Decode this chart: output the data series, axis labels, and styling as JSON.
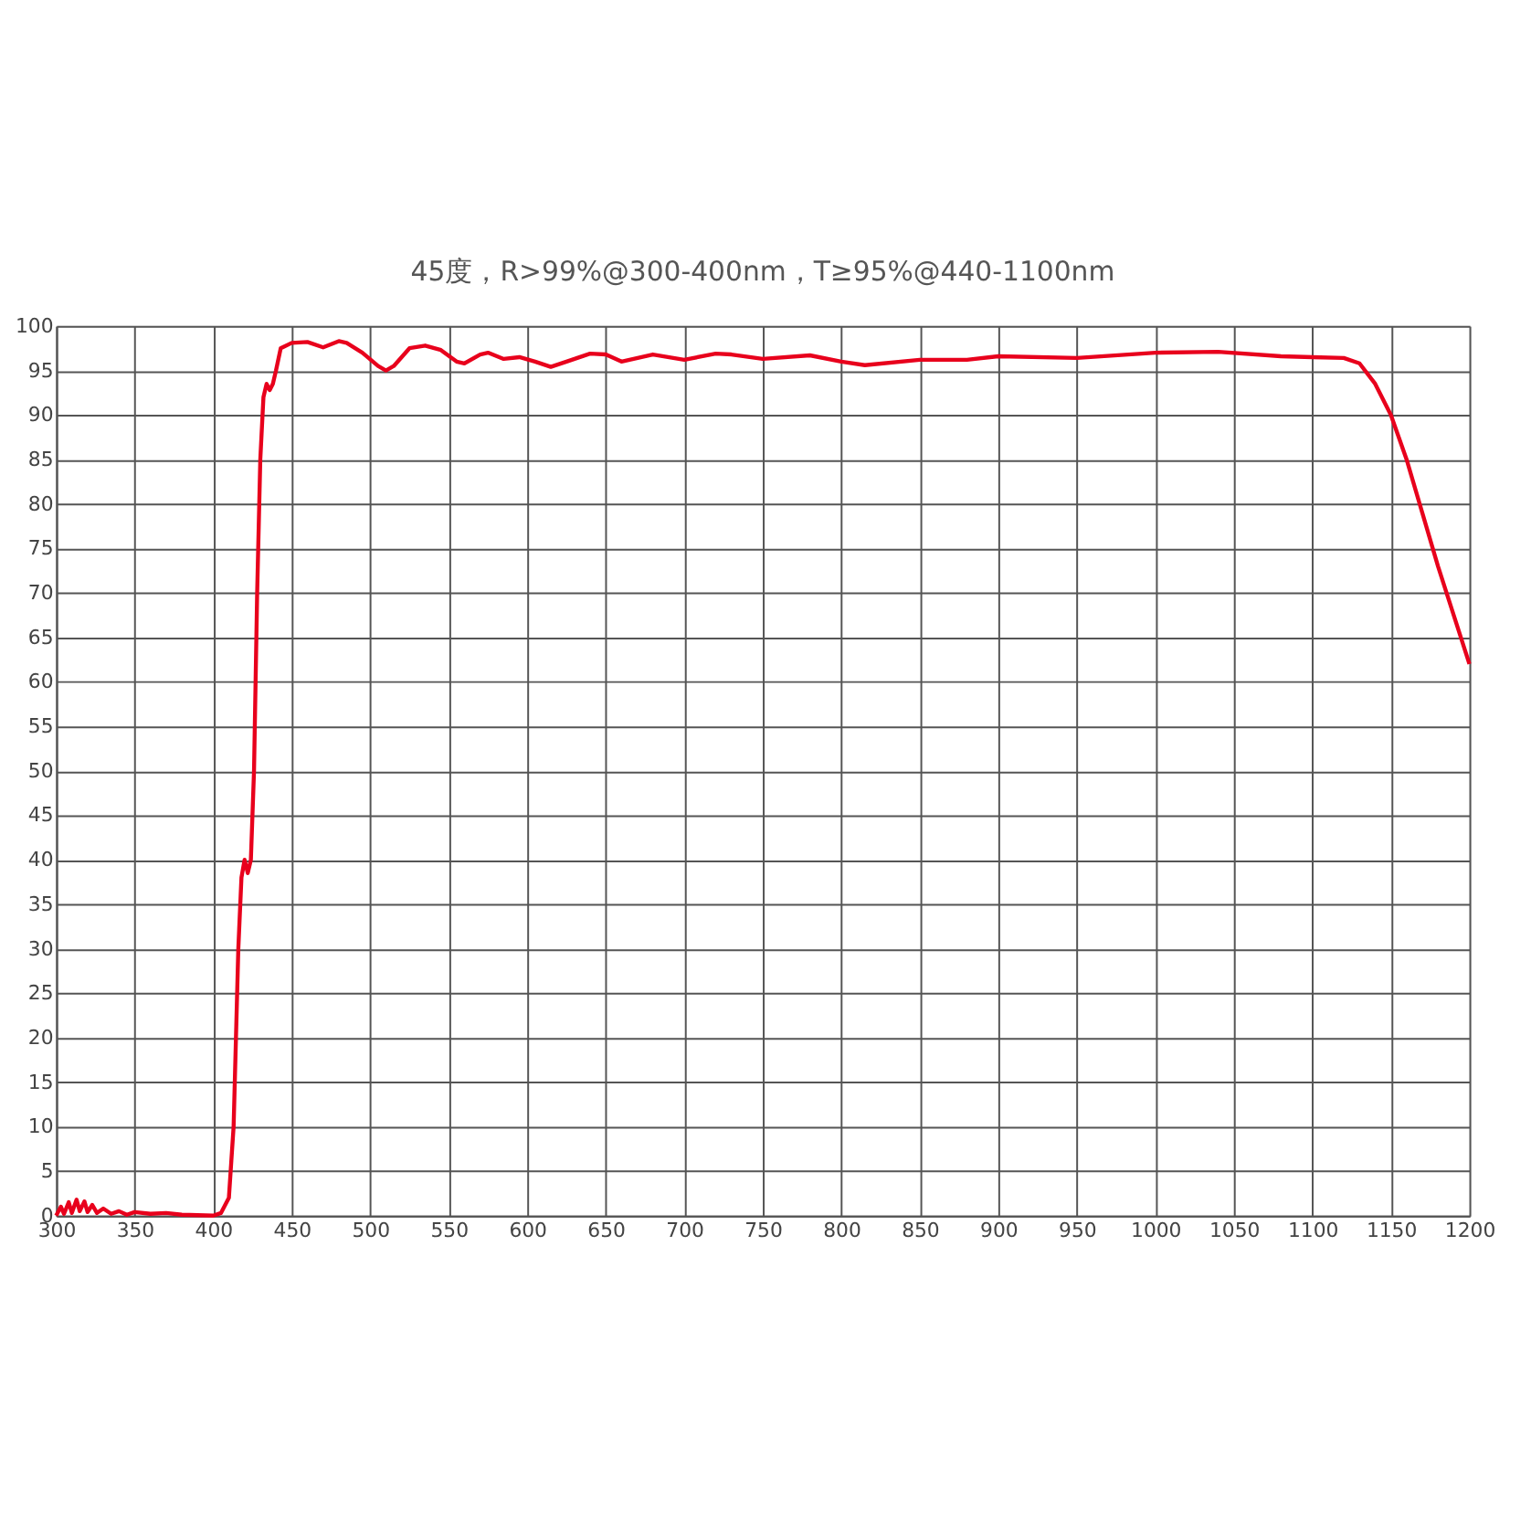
{
  "chart_data": {
    "type": "line",
    "title": "45度，R>99%@300-400nm，T≥95%@440-1100nm",
    "x": [
      300,
      303,
      305,
      308,
      310,
      313,
      315,
      318,
      320,
      323,
      326,
      330,
      335,
      340,
      345,
      350,
      360,
      370,
      380,
      400,
      405,
      410,
      413,
      416,
      418,
      420,
      422,
      424,
      426,
      428,
      430,
      432,
      434,
      436,
      438,
      440,
      443,
      450,
      460,
      470,
      480,
      485,
      495,
      505,
      510,
      515,
      525,
      535,
      545,
      555,
      560,
      570,
      575,
      585,
      595,
      605,
      615,
      625,
      640,
      650,
      660,
      680,
      700,
      720,
      730,
      750,
      780,
      800,
      815,
      850,
      880,
      900,
      950,
      1000,
      1040,
      1080,
      1100,
      1120,
      1130,
      1140,
      1150,
      1160,
      1170,
      1180,
      1190,
      1200
    ],
    "series": [
      {
        "color": "#e8001c",
        "values": [
          0,
          1,
          0.2,
          1.5,
          0.3,
          1.8,
          0.5,
          1.6,
          0.4,
          1.2,
          0.3,
          0.8,
          0.2,
          0.5,
          0.1,
          0.4,
          0.2,
          0.3,
          0.1,
          0,
          0.3,
          2,
          10,
          30,
          38,
          40,
          38.5,
          40,
          50,
          70,
          85,
          92,
          93.5,
          92.8,
          93.5,
          95,
          97.5,
          98.1,
          98.2,
          97.6,
          98.3,
          98.1,
          97,
          95.5,
          95,
          95.5,
          97.5,
          97.8,
          97.3,
          96,
          95.8,
          96.8,
          97,
          96.3,
          96.5,
          96,
          95.4,
          96,
          96.9,
          96.8,
          96,
          96.8,
          96.2,
          96.9,
          96.8,
          96.3,
          96.7,
          96,
          95.6,
          96.2,
          96.2,
          96.6,
          96.4,
          97,
          97.1,
          96.6,
          96.5,
          96.4,
          95.8,
          93.5,
          90,
          85,
          79,
          73,
          67.5,
          62
        ]
      }
    ],
    "xlim": [
      300,
      1200
    ],
    "xticks": [
      300,
      350,
      400,
      450,
      500,
      550,
      600,
      650,
      700,
      750,
      800,
      850,
      900,
      950,
      1000,
      1050,
      1100,
      1150,
      1200
    ],
    "ylim": [
      0,
      100
    ],
    "yticks": [
      0,
      5,
      10,
      15,
      20,
      25,
      30,
      35,
      40,
      45,
      50,
      55,
      60,
      65,
      70,
      75,
      80,
      85,
      90,
      95,
      100
    ],
    "grid": true,
    "legend": false,
    "marker": "none",
    "line_style": "solid"
  }
}
